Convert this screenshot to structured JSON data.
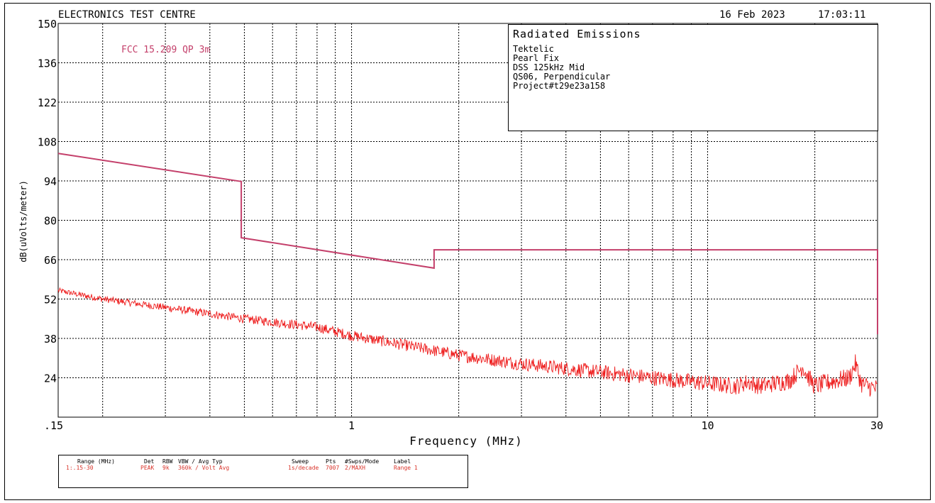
{
  "header": {
    "lab_name": "ELECTRONICS TEST CENTRE",
    "date": "16 Feb 2023",
    "time": "17:03:11"
  },
  "info_box": {
    "title": "Radiated Emissions",
    "lines": [
      "Tektelic",
      "Pearl Fix",
      "DSS 125kHz Mid",
      "QS06, Perpendicular",
      "Project#t29e23a158"
    ]
  },
  "limit_label": "FCC 15.209 QP 3m",
  "settings_table": {
    "headers": {
      "range": "Range (MHz)",
      "det": "Det",
      "rbw": "RBW",
      "vbw": "VBW / Avg Typ",
      "sweep": "Sweep",
      "pts": "Pts",
      "swps": "#Swps/Mode",
      "label": "Label"
    },
    "values": {
      "range": "1:.15-30",
      "det": "PEAK",
      "rbw": "9k",
      "vbw": "360k / Volt Avg",
      "sweep": "1s/decade",
      "pts": "7007",
      "swps": "2/MAXH",
      "label": "Range 1"
    }
  },
  "colors": {
    "limit_line": "#c4406b",
    "trace": "#ee1c1c",
    "grid": "#000000",
    "values_text": "#d9342b"
  },
  "chart_data": {
    "type": "line",
    "xlabel": "Frequency (MHz)",
    "ylabel": "dB(uVolts/meter)",
    "x_scale": "log",
    "xlim": [
      0.15,
      30
    ],
    "ylim": [
      10,
      150
    ],
    "x_tick_labels": [
      ".15",
      "1",
      "10",
      "30"
    ],
    "x_tick_values": [
      0.15,
      1,
      10,
      30
    ],
    "y_ticks": [
      150,
      136,
      122,
      108,
      94,
      80,
      66,
      52,
      38,
      24
    ],
    "grid": true,
    "series": [
      {
        "name": "FCC 15.209 QP 3m",
        "role": "limit",
        "x": [
          0.15,
          0.49,
          0.49,
          1.705,
          1.705,
          30,
          30
        ],
        "y": [
          103.8,
          93.8,
          73.8,
          63.0,
          69.5,
          69.5,
          39.5
        ]
      },
      {
        "name": "",
        "role": "measurement",
        "x": [
          0.15,
          0.2,
          0.3,
          0.5,
          0.8,
          1,
          1.5,
          2,
          3,
          5,
          7,
          10,
          12,
          13,
          14,
          17,
          18.5,
          19,
          20,
          22,
          25,
          26,
          27,
          28,
          30
        ],
        "y": [
          55,
          52,
          49,
          45,
          42,
          39,
          35,
          32,
          29,
          26,
          24,
          22,
          21,
          22.5,
          21,
          23,
          28,
          25,
          21,
          22.5,
          24,
          29,
          22,
          21,
          20
        ]
      }
    ]
  }
}
